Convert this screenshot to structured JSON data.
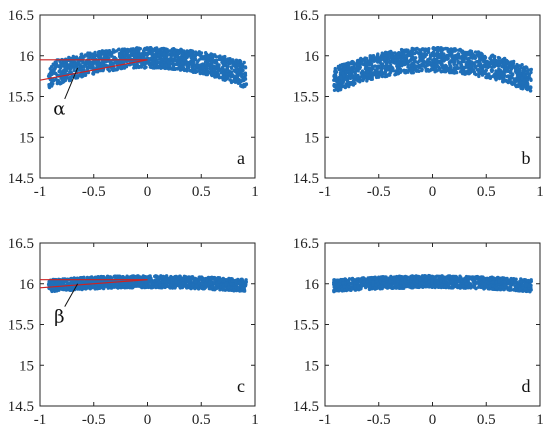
{
  "colors": {
    "points": "#1f6fb8",
    "guide": "#cc2222",
    "frame": "#262626"
  },
  "chart_data": [
    {
      "panel": "a",
      "type": "scatter",
      "label": "a",
      "xlim": [
        -1,
        1
      ],
      "ylim": [
        14.5,
        16.5
      ],
      "xticks": [
        -1,
        -0.5,
        0,
        0.5,
        1
      ],
      "xtick_labels": [
        "-1",
        "-0.5",
        "0",
        "0.5",
        "1"
      ],
      "yticks": [
        14.5,
        15,
        15.5,
        16,
        16.5
      ],
      "ytick_labels": [
        "14.5",
        "15",
        "15.5",
        "16",
        "16.5"
      ],
      "band": {
        "x_start": -0.92,
        "x_end": 0.92,
        "top_center": 16.1,
        "top_edge": 15.92,
        "bottom_center": 15.85,
        "bottom_edge": 15.6,
        "tilt": 0.0
      },
      "lines": [
        {
          "x": [
            -1,
            0
          ],
          "y": [
            15.95,
            15.95
          ]
        },
        {
          "x": [
            -1,
            0
          ],
          "y": [
            15.7,
            15.95
          ]
        }
      ],
      "annotation": {
        "text": "α",
        "x": -0.82,
        "y": 15.35,
        "arrow_to": [
          -0.65,
          15.85
        ]
      }
    },
    {
      "panel": "b",
      "type": "scatter",
      "label": "b",
      "xlim": [
        -1,
        1
      ],
      "ylim": [
        14.5,
        16.5
      ],
      "xticks": [
        -1,
        -0.5,
        0,
        0.5,
        1
      ],
      "xtick_labels": [
        "-1",
        "-0.5",
        "0",
        "0.5",
        "1"
      ],
      "yticks": [
        14.5,
        15,
        15.5,
        16,
        16.5
      ],
      "ytick_labels": [
        "14.5",
        "15",
        "15.5",
        "16",
        "16.5"
      ],
      "band": {
        "x_start": -0.92,
        "x_end": 0.92,
        "top_center": 16.1,
        "top_edge": 15.85,
        "bottom_center": 15.8,
        "bottom_edge": 15.55,
        "tilt": 0.0
      }
    },
    {
      "panel": "c",
      "type": "scatter",
      "label": "c",
      "xlim": [
        -1,
        1
      ],
      "ylim": [
        14.5,
        16.5
      ],
      "xticks": [
        -1,
        -0.5,
        0,
        0.5,
        1
      ],
      "xtick_labels": [
        "-1",
        "-0.5",
        "0",
        "0.5",
        "1"
      ],
      "yticks": [
        14.5,
        15,
        15.5,
        16,
        16.5
      ],
      "ytick_labels": [
        "14.5",
        "15",
        "15.5",
        "16",
        "16.5"
      ],
      "band": {
        "x_start": -0.92,
        "x_end": 0.92,
        "top_center": 16.1,
        "top_edge": 16.05,
        "bottom_center": 15.95,
        "bottom_edge": 15.9,
        "tilt": 0.0
      },
      "lines": [
        {
          "x": [
            -1,
            0
          ],
          "y": [
            16.05,
            16.05
          ]
        },
        {
          "x": [
            -1,
            0
          ],
          "y": [
            15.95,
            16.05
          ]
        }
      ],
      "annotation": {
        "text": "β",
        "x": -0.82,
        "y": 15.6,
        "arrow_to": [
          -0.65,
          16.0
        ]
      }
    },
    {
      "panel": "d",
      "type": "scatter",
      "label": "d",
      "xlim": [
        -1,
        1
      ],
      "ylim": [
        14.5,
        16.5
      ],
      "xticks": [
        -1,
        -0.5,
        0,
        0.5,
        1
      ],
      "xtick_labels": [
        "-1",
        "-0.5",
        "0",
        "0.5",
        "1"
      ],
      "yticks": [
        14.5,
        15,
        15.5,
        16,
        16.5
      ],
      "ytick_labels": [
        "14.5",
        "15",
        "15.5",
        "16",
        "16.5"
      ],
      "band": {
        "x_start": -0.92,
        "x_end": 0.92,
        "top_center": 16.1,
        "top_edge": 16.05,
        "bottom_center": 15.95,
        "bottom_edge": 15.9,
        "tilt": 0.0
      }
    }
  ]
}
